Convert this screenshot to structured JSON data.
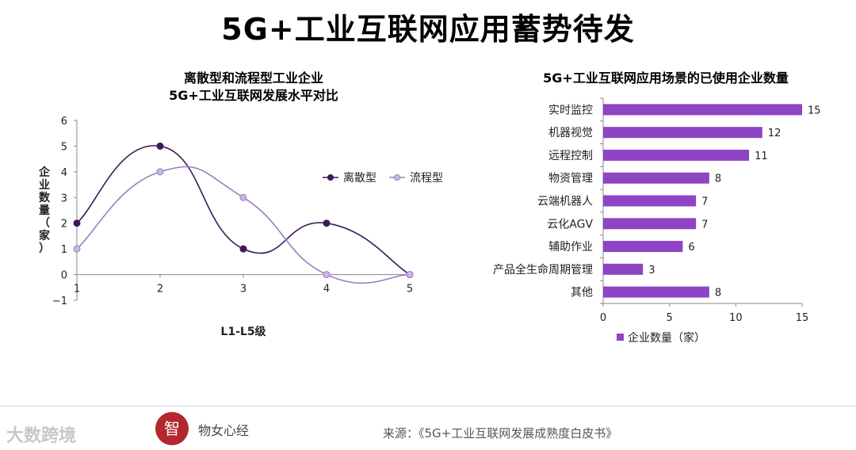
{
  "title": "5G+工业互联网应用蓄势待发",
  "chart_data": [
    {
      "type": "line",
      "title": "离散型和流程型工业企业\n5G+工业互联网发展水平对比",
      "title_lines": [
        "离散型和流程型工业企业",
        "5G+工业互联网发展水平对比"
      ],
      "xlabel": "L1-L5级",
      "ylabel": "企业数量（家）",
      "x": [
        1,
        2,
        3,
        4,
        5
      ],
      "ylim": [
        -1,
        6
      ],
      "yticks": [
        -1,
        0,
        1,
        2,
        3,
        4,
        5,
        6
      ],
      "series": [
        {
          "name": "离散型",
          "values": [
            2,
            5,
            1,
            2,
            0
          ],
          "color": "#3d1a57"
        },
        {
          "name": "流程型",
          "values": [
            1,
            4,
            3,
            0,
            0
          ],
          "color": "#9a7cc4"
        }
      ],
      "legend": "right",
      "grid": false
    },
    {
      "type": "bar",
      "orientation": "horizontal",
      "title": "5G+工业互联网应用场景的已使用企业数量",
      "categories": [
        "实时监控",
        "机器视觉",
        "远程控制",
        "物资管理",
        "云端机器人",
        "云化AGV",
        "辅助作业",
        "产品全生命周期管理",
        "其他"
      ],
      "values": [
        15,
        12,
        11,
        8,
        7,
        7,
        6,
        3,
        8
      ],
      "series_name": "企业数量（家）",
      "xlim": [
        0,
        15
      ],
      "xticks": [
        0,
        5,
        10,
        15
      ],
      "legend": "bottom",
      "grid": false,
      "color": "#8e44c5"
    }
  ],
  "footer": {
    "brand": "物女心经",
    "logo_text": "智",
    "source": "来源：《5G+工业互联网发展成熟度白皮书》",
    "watermark": "大数跨境"
  }
}
